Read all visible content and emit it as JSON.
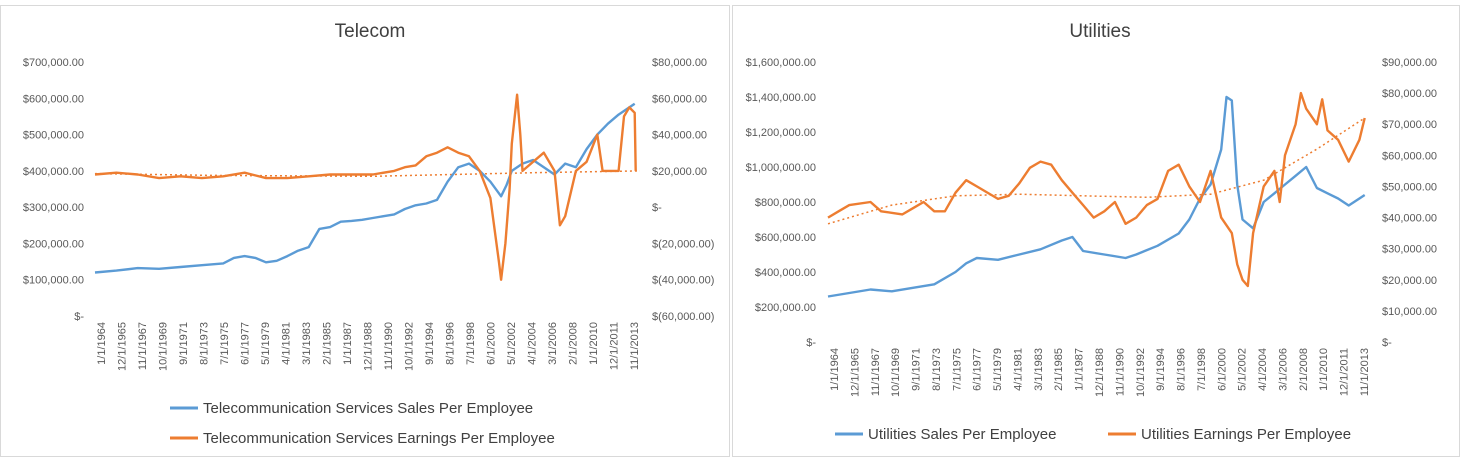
{
  "chart_data": [
    {
      "type": "line",
      "title": "Telecom",
      "x_ticks": [
        "1/1/1964",
        "12/1/1965",
        "11/1/1967",
        "10/1/1969",
        "9/1/1971",
        "8/1/1973",
        "7/1/1975",
        "6/1/1977",
        "5/1/1979",
        "4/1/1981",
        "3/1/1983",
        "2/1/1985",
        "1/1/1987",
        "12/1/1988",
        "11/1/1990",
        "10/1/1992",
        "9/1/1994",
        "8/1/1996",
        "7/1/1998",
        "6/1/2000",
        "5/1/2002",
        "4/1/2004",
        "3/1/2006",
        "2/1/2008",
        "1/1/2010",
        "12/1/2011",
        "11/1/2013"
      ],
      "y_left": {
        "min": 0,
        "max": 700000,
        "ticks": [
          "$-",
          "$100,000.00",
          "$200,000.00",
          "$300,000.00",
          "$400,000.00",
          "$500,000.00",
          "$600,000.00",
          "$700,000.00"
        ]
      },
      "y_right": {
        "min": -60000,
        "max": 80000,
        "ticks": [
          "$(60,000.00)",
          "$(40,000.00)",
          "$(20,000.00)",
          "$-",
          "$20,000.00",
          "$40,000.00",
          "$60,000.00",
          "$80,000.00"
        ]
      },
      "series": [
        {
          "name": "Telecommunication Services Sales Per Employee",
          "axis": "left",
          "color": "#5B9BD5",
          "points": [
            [
              1964,
              120000
            ],
            [
              1966,
              125000
            ],
            [
              1968,
              132000
            ],
            [
              1970,
              130000
            ],
            [
              1972,
              135000
            ],
            [
              1974,
              140000
            ],
            [
              1976,
              145000
            ],
            [
              1977,
              160000
            ],
            [
              1978,
              165000
            ],
            [
              1979,
              160000
            ],
            [
              1980,
              148000
            ],
            [
              1981,
              152000
            ],
            [
              1982,
              165000
            ],
            [
              1983,
              180000
            ],
            [
              1984,
              190000
            ],
            [
              1985,
              240000
            ],
            [
              1986,
              245000
            ],
            [
              1987,
              260000
            ],
            [
              1988,
              262000
            ],
            [
              1989,
              265000
            ],
            [
              1990,
              270000
            ],
            [
              1991,
              275000
            ],
            [
              1992,
              280000
            ],
            [
              1993,
              295000
            ],
            [
              1994,
              305000
            ],
            [
              1995,
              310000
            ],
            [
              1996,
              320000
            ],
            [
              1997,
              370000
            ],
            [
              1998,
              410000
            ],
            [
              1999,
              420000
            ],
            [
              2000,
              400000
            ],
            [
              2001,
              370000
            ],
            [
              2002,
              330000
            ],
            [
              2002.5,
              360000
            ],
            [
              2003,
              400000
            ],
            [
              2004,
              420000
            ],
            [
              2005,
              430000
            ],
            [
              2006,
              410000
            ],
            [
              2007,
              390000
            ],
            [
              2008,
              420000
            ],
            [
              2009,
              410000
            ],
            [
              2010,
              460000
            ],
            [
              2011,
              500000
            ],
            [
              2012,
              530000
            ],
            [
              2013,
              555000
            ],
            [
              2014,
              575000
            ],
            [
              2014.5,
              585000
            ]
          ]
        },
        {
          "name": "Telecommunication Services Earnings Per Employee",
          "axis": "right",
          "color": "#ED7D31",
          "points": [
            [
              1964,
              18000
            ],
            [
              1966,
              19000
            ],
            [
              1968,
              18000
            ],
            [
              1970,
              16000
            ],
            [
              1972,
              17000
            ],
            [
              1974,
              16000
            ],
            [
              1976,
              17000
            ],
            [
              1978,
              19000
            ],
            [
              1980,
              16000
            ],
            [
              1982,
              16000
            ],
            [
              1984,
              17000
            ],
            [
              1986,
              18000
            ],
            [
              1988,
              18000
            ],
            [
              1990,
              18000
            ],
            [
              1992,
              20000
            ],
            [
              1993,
              22000
            ],
            [
              1994,
              23000
            ],
            [
              1995,
              28000
            ],
            [
              1996,
              30000
            ],
            [
              1997,
              33000
            ],
            [
              1998,
              30000
            ],
            [
              1999,
              28000
            ],
            [
              2000,
              20000
            ],
            [
              2001,
              5000
            ],
            [
              2001.8,
              -30000
            ],
            [
              2002,
              -40000
            ],
            [
              2002.4,
              -20000
            ],
            [
              2002.8,
              10000
            ],
            [
              2003,
              35000
            ],
            [
              2003.5,
              62000
            ],
            [
              2003.8,
              40000
            ],
            [
              2004,
              20000
            ],
            [
              2005,
              25000
            ],
            [
              2006,
              30000
            ],
            [
              2007,
              20000
            ],
            [
              2007.5,
              -10000
            ],
            [
              2008,
              -5000
            ],
            [
              2009,
              20000
            ],
            [
              2010,
              25000
            ],
            [
              2011,
              40000
            ],
            [
              2011.5,
              20000
            ],
            [
              2012,
              20000
            ],
            [
              2013,
              20000
            ],
            [
              2013.5,
              50000
            ],
            [
              2014,
              55000
            ],
            [
              2014.5,
              52000
            ],
            [
              2014.6,
              20000
            ]
          ]
        }
      ],
      "trendline": {
        "series": "Telecommunication Services Earnings Per Employee",
        "axis": "right",
        "color": "#ED7D31",
        "points": [
          [
            1964,
            18500
          ],
          [
            1975,
            17500
          ],
          [
            1990,
            17000
          ],
          [
            2005,
            19000
          ],
          [
            2015,
            20000
          ]
        ]
      },
      "x_range": [
        1964,
        2015
      ]
    },
    {
      "type": "line",
      "title": "Utilities",
      "x_ticks": [
        "1/1/1964",
        "12/1/1965",
        "11/1/1967",
        "10/1/1969",
        "9/1/1971",
        "8/1/1973",
        "7/1/1975",
        "6/1/1977",
        "5/1/1979",
        "4/1/1981",
        "3/1/1983",
        "2/1/1985",
        "1/1/1987",
        "12/1/1988",
        "11/1/1990",
        "10/1/1992",
        "9/1/1994",
        "8/1/1996",
        "7/1/1998",
        "6/1/2000",
        "5/1/2002",
        "4/1/2004",
        "3/1/2006",
        "2/1/2008",
        "1/1/2010",
        "12/1/2011",
        "11/1/2013"
      ],
      "y_left": {
        "min": 0,
        "max": 1600000,
        "ticks": [
          "$-",
          "$200,000.00",
          "$400,000.00",
          "$600,000.00",
          "$800,000.00",
          "$1,000,000.00",
          "$1,200,000.00",
          "$1,400,000.00",
          "$1,600,000.00"
        ]
      },
      "y_right": {
        "min": 0,
        "max": 90000,
        "ticks": [
          "$-",
          "$10,000.00",
          "$20,000.00",
          "$30,000.00",
          "$40,000.00",
          "$50,000.00",
          "$60,000.00",
          "$70,000.00",
          "$80,000.00",
          "$90,000.00"
        ]
      },
      "series": [
        {
          "name": "Utilities Sales Per Employee",
          "axis": "left",
          "color": "#5B9BD5",
          "points": [
            [
              1964,
              260000
            ],
            [
              1966,
              280000
            ],
            [
              1968,
              300000
            ],
            [
              1970,
              290000
            ],
            [
              1972,
              310000
            ],
            [
              1974,
              330000
            ],
            [
              1976,
              400000
            ],
            [
              1977,
              450000
            ],
            [
              1978,
              480000
            ],
            [
              1980,
              470000
            ],
            [
              1982,
              500000
            ],
            [
              1984,
              530000
            ],
            [
              1986,
              580000
            ],
            [
              1987,
              600000
            ],
            [
              1988,
              520000
            ],
            [
              1990,
              500000
            ],
            [
              1992,
              480000
            ],
            [
              1993,
              500000
            ],
            [
              1995,
              550000
            ],
            [
              1997,
              620000
            ],
            [
              1998,
              700000
            ],
            [
              1999,
              820000
            ],
            [
              2000,
              900000
            ],
            [
              2001,
              1100000
            ],
            [
              2001.5,
              1400000
            ],
            [
              2002,
              1380000
            ],
            [
              2002.5,
              900000
            ],
            [
              2003,
              700000
            ],
            [
              2004,
              650000
            ],
            [
              2005,
              800000
            ],
            [
              2006,
              850000
            ],
            [
              2007,
              900000
            ],
            [
              2008,
              950000
            ],
            [
              2009,
              1000000
            ],
            [
              2010,
              880000
            ],
            [
              2011,
              850000
            ],
            [
              2012,
              820000
            ],
            [
              2013,
              780000
            ],
            [
              2014,
              820000
            ],
            [
              2014.5,
              840000
            ]
          ]
        },
        {
          "name": "Utilities Earnings Per Employee",
          "axis": "right",
          "color": "#ED7D31",
          "points": [
            [
              1964,
              40000
            ],
            [
              1965,
              42000
            ],
            [
              1966,
              44000
            ],
            [
              1968,
              45000
            ],
            [
              1969,
              42000
            ],
            [
              1971,
              41000
            ],
            [
              1972,
              43000
            ],
            [
              1973,
              45000
            ],
            [
              1974,
              42000
            ],
            [
              1975,
              42000
            ],
            [
              1976,
              48000
            ],
            [
              1977,
              52000
            ],
            [
              1978,
              50000
            ],
            [
              1980,
              46000
            ],
            [
              1981,
              47000
            ],
            [
              1982,
              51000
            ],
            [
              1983,
              56000
            ],
            [
              1984,
              58000
            ],
            [
              1985,
              57000
            ],
            [
              1986,
              52000
            ],
            [
              1987,
              48000
            ],
            [
              1988,
              44000
            ],
            [
              1989,
              40000
            ],
            [
              1990,
              42000
            ],
            [
              1991,
              45000
            ],
            [
              1992,
              38000
            ],
            [
              1993,
              40000
            ],
            [
              1994,
              44000
            ],
            [
              1995,
              46000
            ],
            [
              1996,
              55000
            ],
            [
              1997,
              57000
            ],
            [
              1998,
              50000
            ],
            [
              1999,
              45000
            ],
            [
              2000,
              55000
            ],
            [
              2001,
              40000
            ],
            [
              2002,
              35000
            ],
            [
              2002.5,
              25000
            ],
            [
              2003,
              20000
            ],
            [
              2003.5,
              18000
            ],
            [
              2004,
              35000
            ],
            [
              2005,
              50000
            ],
            [
              2006,
              55000
            ],
            [
              2006.5,
              45000
            ],
            [
              2007,
              60000
            ],
            [
              2008,
              70000
            ],
            [
              2008.5,
              80000
            ],
            [
              2009,
              75000
            ],
            [
              2010,
              70000
            ],
            [
              2010.5,
              78000
            ],
            [
              2011,
              68000
            ],
            [
              2012,
              65000
            ],
            [
              2013,
              58000
            ],
            [
              2014,
              65000
            ],
            [
              2014.5,
              72000
            ]
          ]
        }
      ],
      "trendline": {
        "series": "Utilities Earnings Per Employee",
        "axis": "right",
        "color": "#ED7D31",
        "points": [
          [
            1964,
            38000
          ],
          [
            1970,
            44000
          ],
          [
            1976,
            47000
          ],
          [
            1982,
            47500
          ],
          [
            1988,
            47000
          ],
          [
            1994,
            46500
          ],
          [
            2000,
            47500
          ],
          [
            2005,
            52000
          ],
          [
            2010,
            62000
          ],
          [
            2014.5,
            72000
          ]
        ]
      },
      "x_range": [
        1964,
        2015
      ]
    }
  ]
}
